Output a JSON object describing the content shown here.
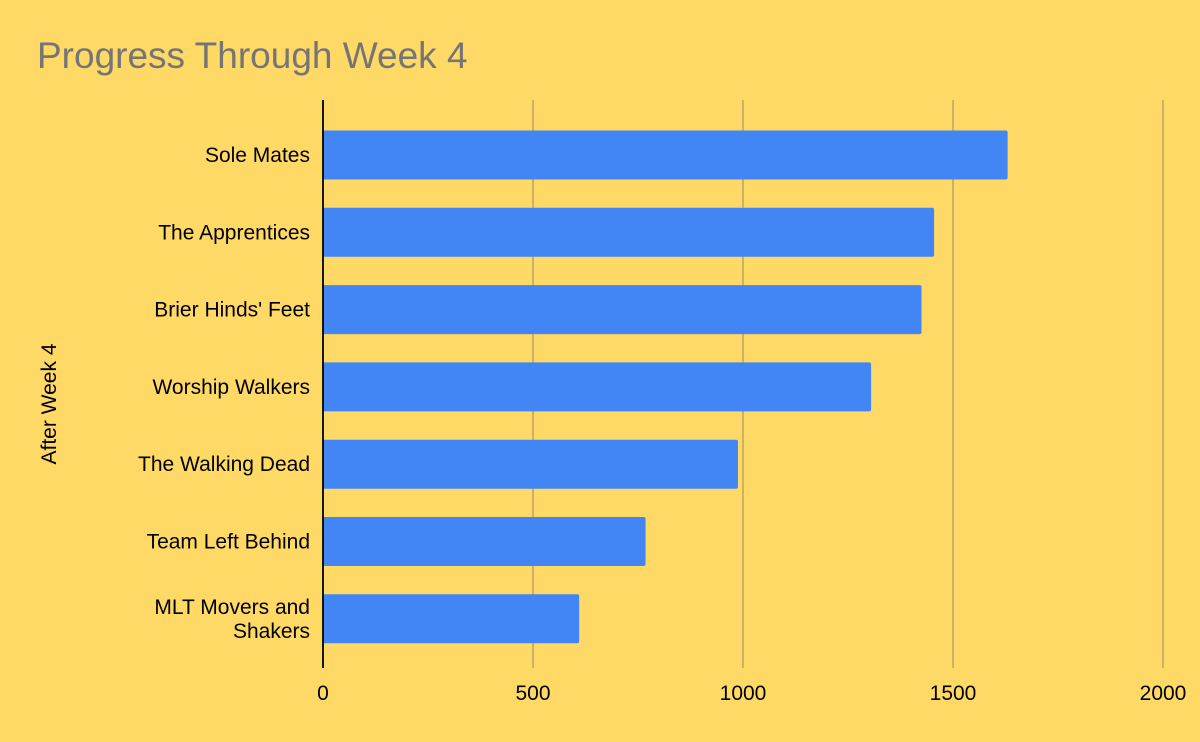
{
  "chart_data": {
    "type": "bar",
    "orientation": "horizontal",
    "title": "Progress Through Week 4",
    "ylabel": "After Week 4",
    "xlabel": "",
    "categories": [
      "Sole Mates",
      "The Apprentices",
      "Brier Hinds' Feet",
      "Worship Walkers",
      "The Walking Dead",
      "Team Left Behind",
      "MLT Movers and Shakers"
    ],
    "values": [
      1630,
      1455,
      1425,
      1305,
      988,
      768,
      610
    ],
    "xlim": [
      0,
      2000
    ],
    "xticks": [
      "0",
      "500",
      "1000",
      "1500",
      "2000"
    ],
    "grid": true,
    "legend": "none",
    "colors": {
      "background": "#FFD966",
      "bar": "#4285F4",
      "gridline": "#B7A362",
      "axis": "#000000",
      "title": "#757575"
    }
  }
}
